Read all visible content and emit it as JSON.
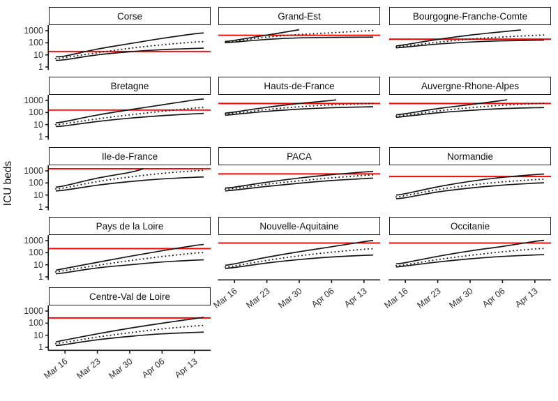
{
  "ylabel": "ICU beds",
  "colors": {
    "curve": "#151515",
    "threshold": "#ff0000",
    "axis": "#1a1a1a",
    "tick_text": "#2e2e2e",
    "strip_border": "#1a1a1a",
    "background": "#ffffff"
  },
  "chart_data": {
    "type": "line",
    "y_scale": "log10",
    "ylim": [
      0.6,
      2900
    ],
    "y_ticks": [
      1000,
      100,
      10,
      1
    ],
    "y_tick_labels": [
      "1000",
      "100",
      "10",
      "1"
    ],
    "x_tick_days": [
      2,
      9,
      16,
      23,
      30
    ],
    "x_tick_labels": [
      "Mar 16",
      "Mar 23",
      "Mar 30",
      "Apr 06",
      "Apr 13"
    ],
    "x_domain_days": [
      0,
      32
    ],
    "series_styles": [
      {
        "name": "upper_bound",
        "style": "solid"
      },
      {
        "name": "median",
        "style": "dotted"
      },
      {
        "name": "lower_bound",
        "style": "solid"
      }
    ],
    "facets": [
      {
        "title": "Corse",
        "grid": {
          "row": 0,
          "col": 0
        },
        "y_labels": true,
        "x_labels": false,
        "threshold": 19,
        "upper": [
          [
            0,
            7
          ],
          [
            2,
            8
          ],
          [
            9,
            30
          ],
          [
            16,
            85
          ],
          [
            23,
            230
          ],
          [
            30,
            550
          ],
          [
            32,
            650
          ]
        ],
        "median": [
          [
            0,
            5
          ],
          [
            2,
            6
          ],
          [
            9,
            15
          ],
          [
            16,
            35
          ],
          [
            23,
            68
          ],
          [
            30,
            115
          ],
          [
            32,
            125
          ]
        ],
        "lower": [
          [
            0,
            3.5
          ],
          [
            2,
            4
          ],
          [
            9,
            10
          ],
          [
            16,
            18
          ],
          [
            23,
            27
          ],
          [
            30,
            34
          ],
          [
            32,
            36
          ]
        ]
      },
      {
        "title": "Grand-Est",
        "grid": {
          "row": 0,
          "col": 1
        },
        "y_labels": false,
        "x_labels": false,
        "threshold": 420,
        "upper": [
          [
            0,
            130
          ],
          [
            2,
            160
          ],
          [
            9,
            430
          ],
          [
            16,
            1200
          ]
        ],
        "median": [
          [
            0,
            115
          ],
          [
            2,
            135
          ],
          [
            9,
            290
          ],
          [
            16,
            480
          ],
          [
            23,
            670
          ],
          [
            30,
            950
          ],
          [
            32,
            1050
          ]
        ],
        "lower": [
          [
            0,
            100
          ],
          [
            2,
            115
          ],
          [
            9,
            190
          ],
          [
            16,
            255
          ],
          [
            23,
            280
          ],
          [
            30,
            290
          ],
          [
            32,
            292
          ]
        ]
      },
      {
        "title": "Bourgogne-Franche-Comte",
        "grid": {
          "row": 0,
          "col": 2
        },
        "y_labels": false,
        "x_labels": false,
        "threshold": 200,
        "upper": [
          [
            0,
            55
          ],
          [
            2,
            70
          ],
          [
            9,
            190
          ],
          [
            16,
            430
          ],
          [
            23,
            820
          ],
          [
            27,
            1150
          ]
        ],
        "median": [
          [
            0,
            45
          ],
          [
            2,
            54
          ],
          [
            9,
            110
          ],
          [
            16,
            200
          ],
          [
            23,
            300
          ],
          [
            30,
            410
          ],
          [
            32,
            440
          ]
        ],
        "lower": [
          [
            0,
            38
          ],
          [
            2,
            44
          ],
          [
            9,
            78
          ],
          [
            16,
            115
          ],
          [
            23,
            145
          ],
          [
            30,
            162
          ],
          [
            32,
            166
          ]
        ]
      },
      {
        "title": "Bretagne",
        "grid": {
          "row": 1,
          "col": 0
        },
        "y_labels": true,
        "x_labels": false,
        "threshold": 160,
        "upper": [
          [
            0,
            14
          ],
          [
            2,
            18
          ],
          [
            9,
            62
          ],
          [
            16,
            170
          ],
          [
            23,
            430
          ],
          [
            30,
            1100
          ],
          [
            32,
            1300
          ]
        ],
        "median": [
          [
            0,
            10
          ],
          [
            2,
            12
          ],
          [
            9,
            30
          ],
          [
            16,
            64
          ],
          [
            23,
            125
          ],
          [
            30,
            230
          ],
          [
            32,
            260
          ]
        ],
        "lower": [
          [
            0,
            7
          ],
          [
            2,
            8
          ],
          [
            9,
            18
          ],
          [
            16,
            34
          ],
          [
            23,
            55
          ],
          [
            30,
            78
          ],
          [
            32,
            84
          ]
        ]
      },
      {
        "title": "Hauts-de-France",
        "grid": {
          "row": 1,
          "col": 1
        },
        "y_labels": false,
        "x_labels": false,
        "threshold": 560,
        "upper": [
          [
            0,
            90
          ],
          [
            2,
            110
          ],
          [
            9,
            270
          ],
          [
            16,
            560
          ],
          [
            23,
            1000
          ],
          [
            24,
            1150
          ]
        ],
        "median": [
          [
            0,
            75
          ],
          [
            2,
            88
          ],
          [
            9,
            175
          ],
          [
            16,
            300
          ],
          [
            23,
            430
          ],
          [
            30,
            530
          ],
          [
            32,
            550
          ]
        ],
        "lower": [
          [
            0,
            60
          ],
          [
            2,
            70
          ],
          [
            9,
            125
          ],
          [
            16,
            190
          ],
          [
            23,
            250
          ],
          [
            30,
            290
          ],
          [
            32,
            298
          ]
        ]
      },
      {
        "title": "Auvergne-Rhone-Alpes",
        "grid": {
          "row": 1,
          "col": 2
        },
        "y_labels": false,
        "x_labels": false,
        "threshold": 560,
        "upper": [
          [
            0,
            65
          ],
          [
            2,
            80
          ],
          [
            9,
            210
          ],
          [
            16,
            450
          ],
          [
            23,
            1000
          ],
          [
            24,
            1150
          ]
        ],
        "median": [
          [
            0,
            50
          ],
          [
            2,
            60
          ],
          [
            9,
            135
          ],
          [
            16,
            250
          ],
          [
            23,
            400
          ],
          [
            30,
            540
          ],
          [
            32,
            570
          ]
        ],
        "lower": [
          [
            0,
            40
          ],
          [
            2,
            48
          ],
          [
            9,
            95
          ],
          [
            16,
            150
          ],
          [
            23,
            210
          ],
          [
            30,
            250
          ],
          [
            32,
            258
          ]
        ]
      },
      {
        "title": "Ile-de-France",
        "grid": {
          "row": 2,
          "col": 0
        },
        "y_labels": true,
        "x_labels": false,
        "threshold": 1500,
        "upper": [
          [
            0,
            45
          ],
          [
            2,
            60
          ],
          [
            9,
            250
          ],
          [
            16,
            750
          ],
          [
            19,
            1500
          ]
        ],
        "median": [
          [
            0,
            32
          ],
          [
            2,
            40
          ],
          [
            9,
            130
          ],
          [
            16,
            310
          ],
          [
            23,
            620
          ],
          [
            30,
            1000
          ],
          [
            32,
            1100
          ]
        ],
        "lower": [
          [
            0,
            22
          ],
          [
            2,
            26
          ],
          [
            9,
            65
          ],
          [
            16,
            130
          ],
          [
            23,
            215
          ],
          [
            30,
            295
          ],
          [
            32,
            315
          ]
        ]
      },
      {
        "title": "PACA",
        "grid": {
          "row": 2,
          "col": 1
        },
        "y_labels": false,
        "x_labels": false,
        "threshold": 560,
        "upper": [
          [
            0,
            38
          ],
          [
            2,
            45
          ],
          [
            9,
            115
          ],
          [
            16,
            255
          ],
          [
            23,
            480
          ],
          [
            30,
            800
          ],
          [
            32,
            880
          ]
        ],
        "median": [
          [
            0,
            30
          ],
          [
            2,
            35
          ],
          [
            9,
            78
          ],
          [
            16,
            150
          ],
          [
            23,
            265
          ],
          [
            30,
            420
          ],
          [
            32,
            460
          ]
        ],
        "lower": [
          [
            0,
            22
          ],
          [
            2,
            26
          ],
          [
            9,
            52
          ],
          [
            16,
            95
          ],
          [
            23,
            158
          ],
          [
            30,
            230
          ],
          [
            32,
            250
          ]
        ]
      },
      {
        "title": "Normandie",
        "grid": {
          "row": 2,
          "col": 2
        },
        "y_labels": false,
        "x_labels": false,
        "threshold": 340,
        "upper": [
          [
            0,
            10
          ],
          [
            2,
            13
          ],
          [
            9,
            48
          ],
          [
            16,
            135
          ],
          [
            23,
            290
          ],
          [
            30,
            490
          ],
          [
            32,
            545
          ]
        ],
        "median": [
          [
            0,
            7
          ],
          [
            2,
            9
          ],
          [
            9,
            28
          ],
          [
            16,
            66
          ],
          [
            23,
            122
          ],
          [
            30,
            188
          ],
          [
            32,
            205
          ]
        ],
        "lower": [
          [
            0,
            5
          ],
          [
            2,
            6
          ],
          [
            9,
            18
          ],
          [
            16,
            38
          ],
          [
            23,
            66
          ],
          [
            30,
            96
          ],
          [
            32,
            104
          ]
        ]
      },
      {
        "title": "Pays de la Loire",
        "grid": {
          "row": 3,
          "col": 0
        },
        "y_labels": true,
        "x_labels": false,
        "threshold": 220,
        "upper": [
          [
            0,
            3.5
          ],
          [
            2,
            5
          ],
          [
            9,
            16
          ],
          [
            16,
            50
          ],
          [
            23,
            145
          ],
          [
            30,
            390
          ],
          [
            32,
            480
          ]
        ],
        "median": [
          [
            0,
            2.6
          ],
          [
            2,
            3.4
          ],
          [
            9,
            9
          ],
          [
            16,
            22
          ],
          [
            23,
            48
          ],
          [
            30,
            92
          ],
          [
            32,
            102
          ]
        ],
        "lower": [
          [
            0,
            1.8
          ],
          [
            2,
            2.2
          ],
          [
            9,
            5.5
          ],
          [
            16,
            10
          ],
          [
            23,
            17
          ],
          [
            30,
            24
          ],
          [
            32,
            26
          ]
        ]
      },
      {
        "title": "Nouvelle-Aquitaine",
        "grid": {
          "row": 3,
          "col": 1
        },
        "y_labels": false,
        "x_labels": true,
        "threshold": 630,
        "upper": [
          [
            0,
            9
          ],
          [
            2,
            12
          ],
          [
            9,
            42
          ],
          [
            16,
            120
          ],
          [
            23,
            310
          ],
          [
            30,
            820
          ],
          [
            32,
            1020
          ]
        ],
        "median": [
          [
            0,
            6.5
          ],
          [
            2,
            8
          ],
          [
            9,
            23
          ],
          [
            16,
            55
          ],
          [
            23,
            110
          ],
          [
            30,
            190
          ],
          [
            32,
            212
          ]
        ],
        "lower": [
          [
            0,
            5
          ],
          [
            2,
            6
          ],
          [
            9,
            14
          ],
          [
            16,
            27
          ],
          [
            23,
            44
          ],
          [
            30,
            60
          ],
          [
            32,
            64
          ]
        ]
      },
      {
        "title": "Occitanie",
        "grid": {
          "row": 3,
          "col": 2
        },
        "y_labels": false,
        "x_labels": true,
        "threshold": 630,
        "upper": [
          [
            0,
            12
          ],
          [
            2,
            15
          ],
          [
            9,
            50
          ],
          [
            16,
            140
          ],
          [
            23,
            330
          ],
          [
            30,
            860
          ],
          [
            32,
            1050
          ]
        ],
        "median": [
          [
            0,
            8.5
          ],
          [
            2,
            10
          ],
          [
            9,
            27
          ],
          [
            16,
            60
          ],
          [
            23,
            118
          ],
          [
            30,
            205
          ],
          [
            32,
            222
          ]
        ],
        "lower": [
          [
            0,
            6.5
          ],
          [
            2,
            8
          ],
          [
            9,
            17
          ],
          [
            16,
            31
          ],
          [
            23,
            49
          ],
          [
            30,
            65
          ],
          [
            32,
            69
          ]
        ]
      },
      {
        "title": "Centre-Val de Loire",
        "grid": {
          "row": 4,
          "col": 0
        },
        "y_labels": true,
        "x_labels": true,
        "threshold": 270,
        "upper": [
          [
            0,
            2.8
          ],
          [
            2,
            4
          ],
          [
            9,
            13
          ],
          [
            16,
            38
          ],
          [
            23,
            98
          ],
          [
            30,
            235
          ],
          [
            32,
            300
          ]
        ],
        "median": [
          [
            0,
            2
          ],
          [
            2,
            2.6
          ],
          [
            9,
            7
          ],
          [
            16,
            16
          ],
          [
            23,
            33
          ],
          [
            30,
            58
          ],
          [
            32,
            64
          ]
        ],
        "lower": [
          [
            0,
            1.4
          ],
          [
            2,
            1.7
          ],
          [
            9,
            4.2
          ],
          [
            16,
            8
          ],
          [
            23,
            13
          ],
          [
            30,
            17
          ],
          [
            32,
            18
          ]
        ]
      }
    ]
  }
}
